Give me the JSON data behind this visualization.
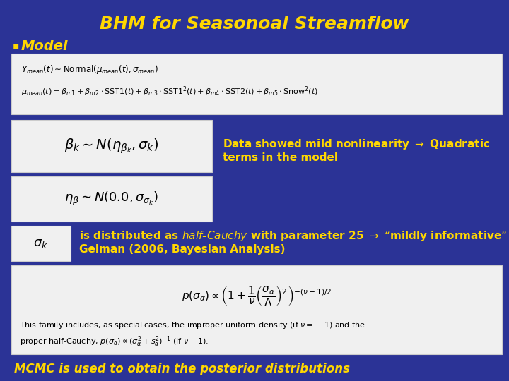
{
  "title": "BHM for Seasonoal Streamflow",
  "title_color": "#FFD700",
  "title_fontsize": 18,
  "bg_color": "#2B3396",
  "bullet_color": "#FFD700",
  "bullet_fontsize": 14,
  "bullet_label": "Model",
  "box1_line1": "$Y_{mean}(t) \\sim \\mathrm{Normal}(\\mu_{mean}(t), \\sigma_{mean})$",
  "box1_line2": "$\\mu_{mean}(t) = \\beta_{m1} + \\beta_{m2} \\cdot \\mathrm{SST1}(t) + \\beta_{m3} \\cdot \\mathrm{SST1}^{2}(t) + \\beta_{m4} \\cdot \\mathrm{SST2}(t) + \\beta_{m5} \\cdot \\mathrm{Snow}^{2}(t)$",
  "box1_bg": "#F0F0F0",
  "box2_text": "$\\beta_k \\sim N(\\eta_{\\beta_k}, \\sigma_k)$",
  "box2_bg": "#F0F0F0",
  "box3_text": "$\\eta_{\\beta} \\sim N(0.0, \\sigma_{\\sigma_k})$",
  "box3_bg": "#F0F0F0",
  "box4_text": "$\\sigma_k$",
  "box4_bg": "#F0F0F0",
  "note1": "Data showed mild nonlinearity $\\rightarrow$ Quadratic\nterms in the model",
  "note1_color": "#FFD700",
  "note1_fontsize": 11,
  "note2": "is distributed as $\\mathit{half}$-$\\mathit{Cauchy}$ with parameter 25 $\\rightarrow$ “mildly informative”\nGelman (2006, Bayesian Analysis)",
  "note2_color": "#FFD700",
  "note2_fontsize": 11,
  "box5_formula": "$p(\\sigma_\\alpha) \\propto \\left(1 + \\dfrac{1}{\\nu}\\left(\\dfrac{\\sigma_\\alpha}{\\Lambda}\\right)^2\\right)^{-(\\nu-1)/2}$",
  "box5_line2": "This family includes, as special cases, the improper uniform density (if $\\nu = -1$) and the",
  "box5_line3": "proper half-Cauchy, $p(\\sigma_\\alpha) \\propto (\\sigma^2_\\alpha + s^2_\\alpha)^{-1}$ (if $\\nu - 1$).",
  "box5_bg": "#F0F0F0",
  "footer": "MCMC is used to obtain the posterior distributions",
  "footer_color": "#FFD700",
  "footer_fontsize": 12
}
